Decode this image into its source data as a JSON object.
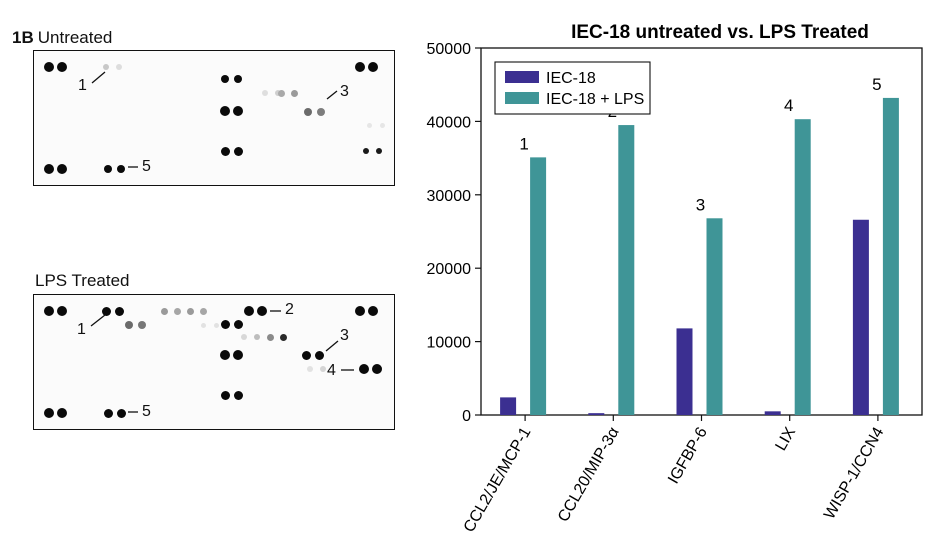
{
  "figure": {
    "panel_letter": "1B",
    "untreated_title": "Untreated",
    "lps_title": "LPS Treated"
  },
  "blot_labels": {
    "untreated": [
      "1",
      "3",
      "5"
    ],
    "lps": [
      "1",
      "2",
      "3",
      "4",
      "5"
    ]
  },
  "chart_data": {
    "type": "bar",
    "title": "IEC-18 untreated vs. LPS Treated",
    "xlabel": "",
    "ylabel": "",
    "categories": [
      "CCL2/JE/MCP-1",
      "CCL20/MIP-3α",
      "IGFBP-6",
      "LIX",
      "WISP-1/CCN4"
    ],
    "series": [
      {
        "name": "IEC-18",
        "color": "#3b2f91",
        "values": [
          2400,
          250,
          11800,
          500,
          26600
        ]
      },
      {
        "name": "IEC-18 + LPS",
        "color": "#3f9597",
        "values": [
          35100,
          39500,
          26800,
          40300,
          43200
        ]
      }
    ],
    "annotations": [
      "1",
      "2",
      "3",
      "4",
      "5"
    ],
    "ylim": [
      0,
      50000
    ],
    "yticks": [
      "0",
      "10000",
      "20000",
      "30000",
      "40000",
      "50000"
    ],
    "legend": "top-left",
    "grid": false
  }
}
